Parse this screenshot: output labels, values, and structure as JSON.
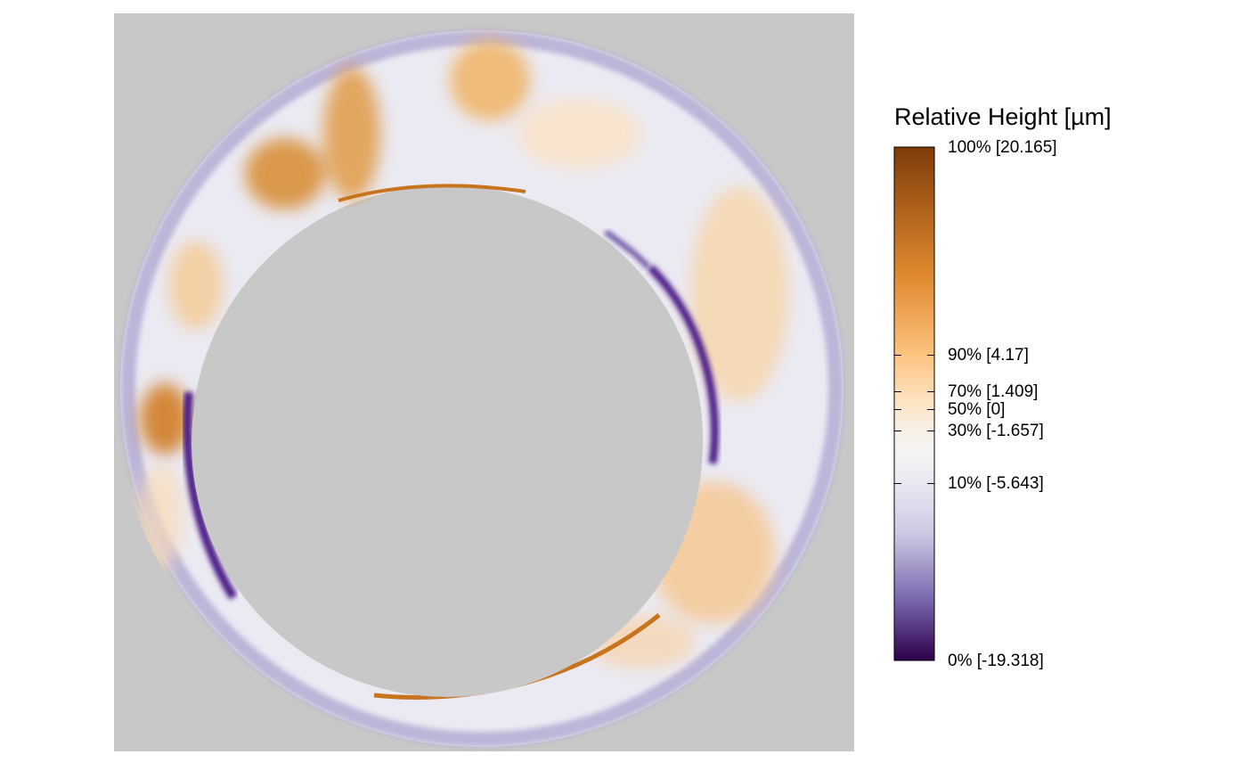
{
  "chart_data": {
    "type": "heatmap",
    "title": "",
    "legend": {
      "title": "Relative Height [µm]",
      "placement": "right",
      "ticks": [
        {
          "percent": 100,
          "value": 20.165,
          "label": "100% [20.165]"
        },
        {
          "percent": 90,
          "value": 4.17,
          "label": "90% [4.17]"
        },
        {
          "percent": 70,
          "value": 1.409,
          "label": "70% [1.409]"
        },
        {
          "percent": 50,
          "value": 0,
          "label": "50% [0]"
        },
        {
          "percent": 30,
          "value": -1.657,
          "label": "30% [-1.657]"
        },
        {
          "percent": 10,
          "value": -5.643,
          "label": "10% [-5.643]"
        },
        {
          "percent": 0,
          "value": -19.318,
          "label": "0% [-19.318]"
        }
      ],
      "value_range": [
        -19.318,
        20.165
      ],
      "colormap": "PuOr",
      "colors": {
        "low": "#2d004b",
        "mid": "#f7f7f7",
        "high": "#7f3b08"
      }
    },
    "background_color": "#c8c8c8",
    "subject": "ring-shaped surface height map",
    "grid": false
  }
}
